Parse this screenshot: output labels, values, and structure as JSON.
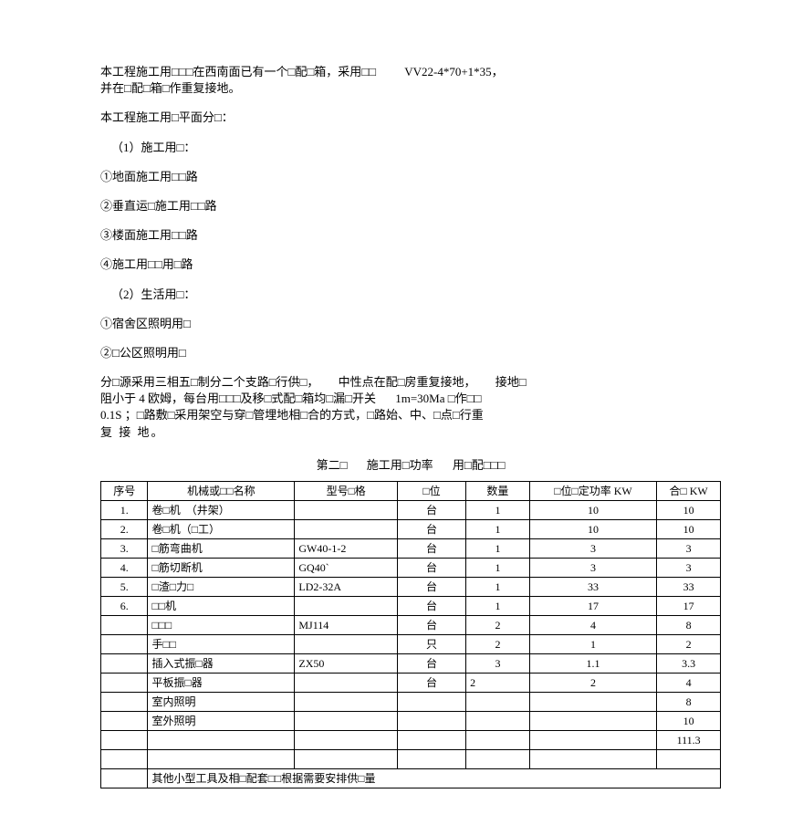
{
  "p1a": "本工程施工用□□□在西南面已有一个□配□箱，采用□□",
  "p1b": "VV22-4*70+1*35，",
  "p1c": "并在□配□箱□作重复接地。",
  "p2": "本工程施工用□平面分□：",
  "p3": "（1）施工用□：",
  "p4": "①地面施工用□□路",
  "p5": "②垂直运□施工用□□路",
  "p6": "③楼面施工用□□路",
  "p7": "④施工用□□用□路",
  "p8": "（2）生活用□：",
  "p9": "①宿舍区照明用□",
  "p10": "②□公区照明用□",
  "p11a": "分□源采用三相五□制分二个支路□行供□，",
  "p11b": "中性点在配□房重复接地，",
  "p11c": "接地□",
  "p12a": "阻小于 4 欧姆，每台用□□□及移□式配□箱均□漏□开关",
  "p12b": "1m=30Ma □作□□",
  "p13": "0.1S ；□路敷□采用架空与穿□管埋地相□合的方式，□路始、中、□点□行重",
  "p14": "复 接 地。",
  "title1": "第二□",
  "title2": "施工用□功率",
  "title3": "用□配□□□",
  "headers": {
    "c1": "序号",
    "c2": "机械或□□名称",
    "c3": "型号□格",
    "c4": "□位",
    "c5": "数量",
    "c6": "□位□定功率  KW",
    "c7": "合□  KW"
  },
  "rows": [
    {
      "n": "1.",
      "name": "卷□机　（井架）",
      "model": "",
      "unit": "台",
      "qty": "1",
      "pw": "10",
      "sum": "10"
    },
    {
      "n": "2.",
      "name": "卷□机（□工）",
      "model": "",
      "unit": "台",
      "qty": "1",
      "pw": "10",
      "sum": "10"
    },
    {
      "n": "3.",
      "name": "□筋弯曲机",
      "model": "GW40-1-2",
      "unit": "台",
      "qty": "1",
      "pw": "3",
      "sum": "3"
    },
    {
      "n": "4.",
      "name": "□筋切断机",
      "model": "GQ40`",
      "unit": "台",
      "qty": "1",
      "pw": "3",
      "sum": "3"
    },
    {
      "n": "5.",
      "name": "□渣□力□",
      "model": "LD2-32A",
      "unit": "台",
      "qty": "1",
      "pw": "33",
      "sum": "33"
    },
    {
      "n": "6.",
      "name": "□□机",
      "model": "",
      "unit": "台",
      "qty": "1",
      "pw": "17",
      "sum": "17"
    },
    {
      "n": "",
      "name": "□□□",
      "model": "MJ114",
      "unit": "台",
      "qty": "2",
      "pw": "4",
      "sum": "8"
    },
    {
      "n": "",
      "name": "手□□",
      "model": "",
      "unit": "只",
      "qty": "2",
      "pw": "1",
      "sum": "2"
    },
    {
      "n": "",
      "name": "插入式振□器",
      "model": "ZX50",
      "unit": "台",
      "qty": "3",
      "pw": "1.1",
      "sum": "3.3"
    },
    {
      "n": "",
      "name": "平板振□器",
      "model": "",
      "unit": "台",
      "qty": "2",
      "pw": "2",
      "sum": "4",
      "qtyLeft": true
    },
    {
      "n": "",
      "name": "室内照明",
      "model": "",
      "unit": "",
      "qty": "",
      "pw": "",
      "sum": "8"
    },
    {
      "n": "",
      "name": "室外照明",
      "model": "",
      "unit": "",
      "qty": "",
      "pw": "",
      "sum": "10"
    },
    {
      "n": "",
      "name": "",
      "model": "",
      "unit": "",
      "qty": "",
      "pw": "",
      "sum": "111.3"
    }
  ],
  "footer": "其他小型工具及相□配套□□根据需要安排供□量"
}
